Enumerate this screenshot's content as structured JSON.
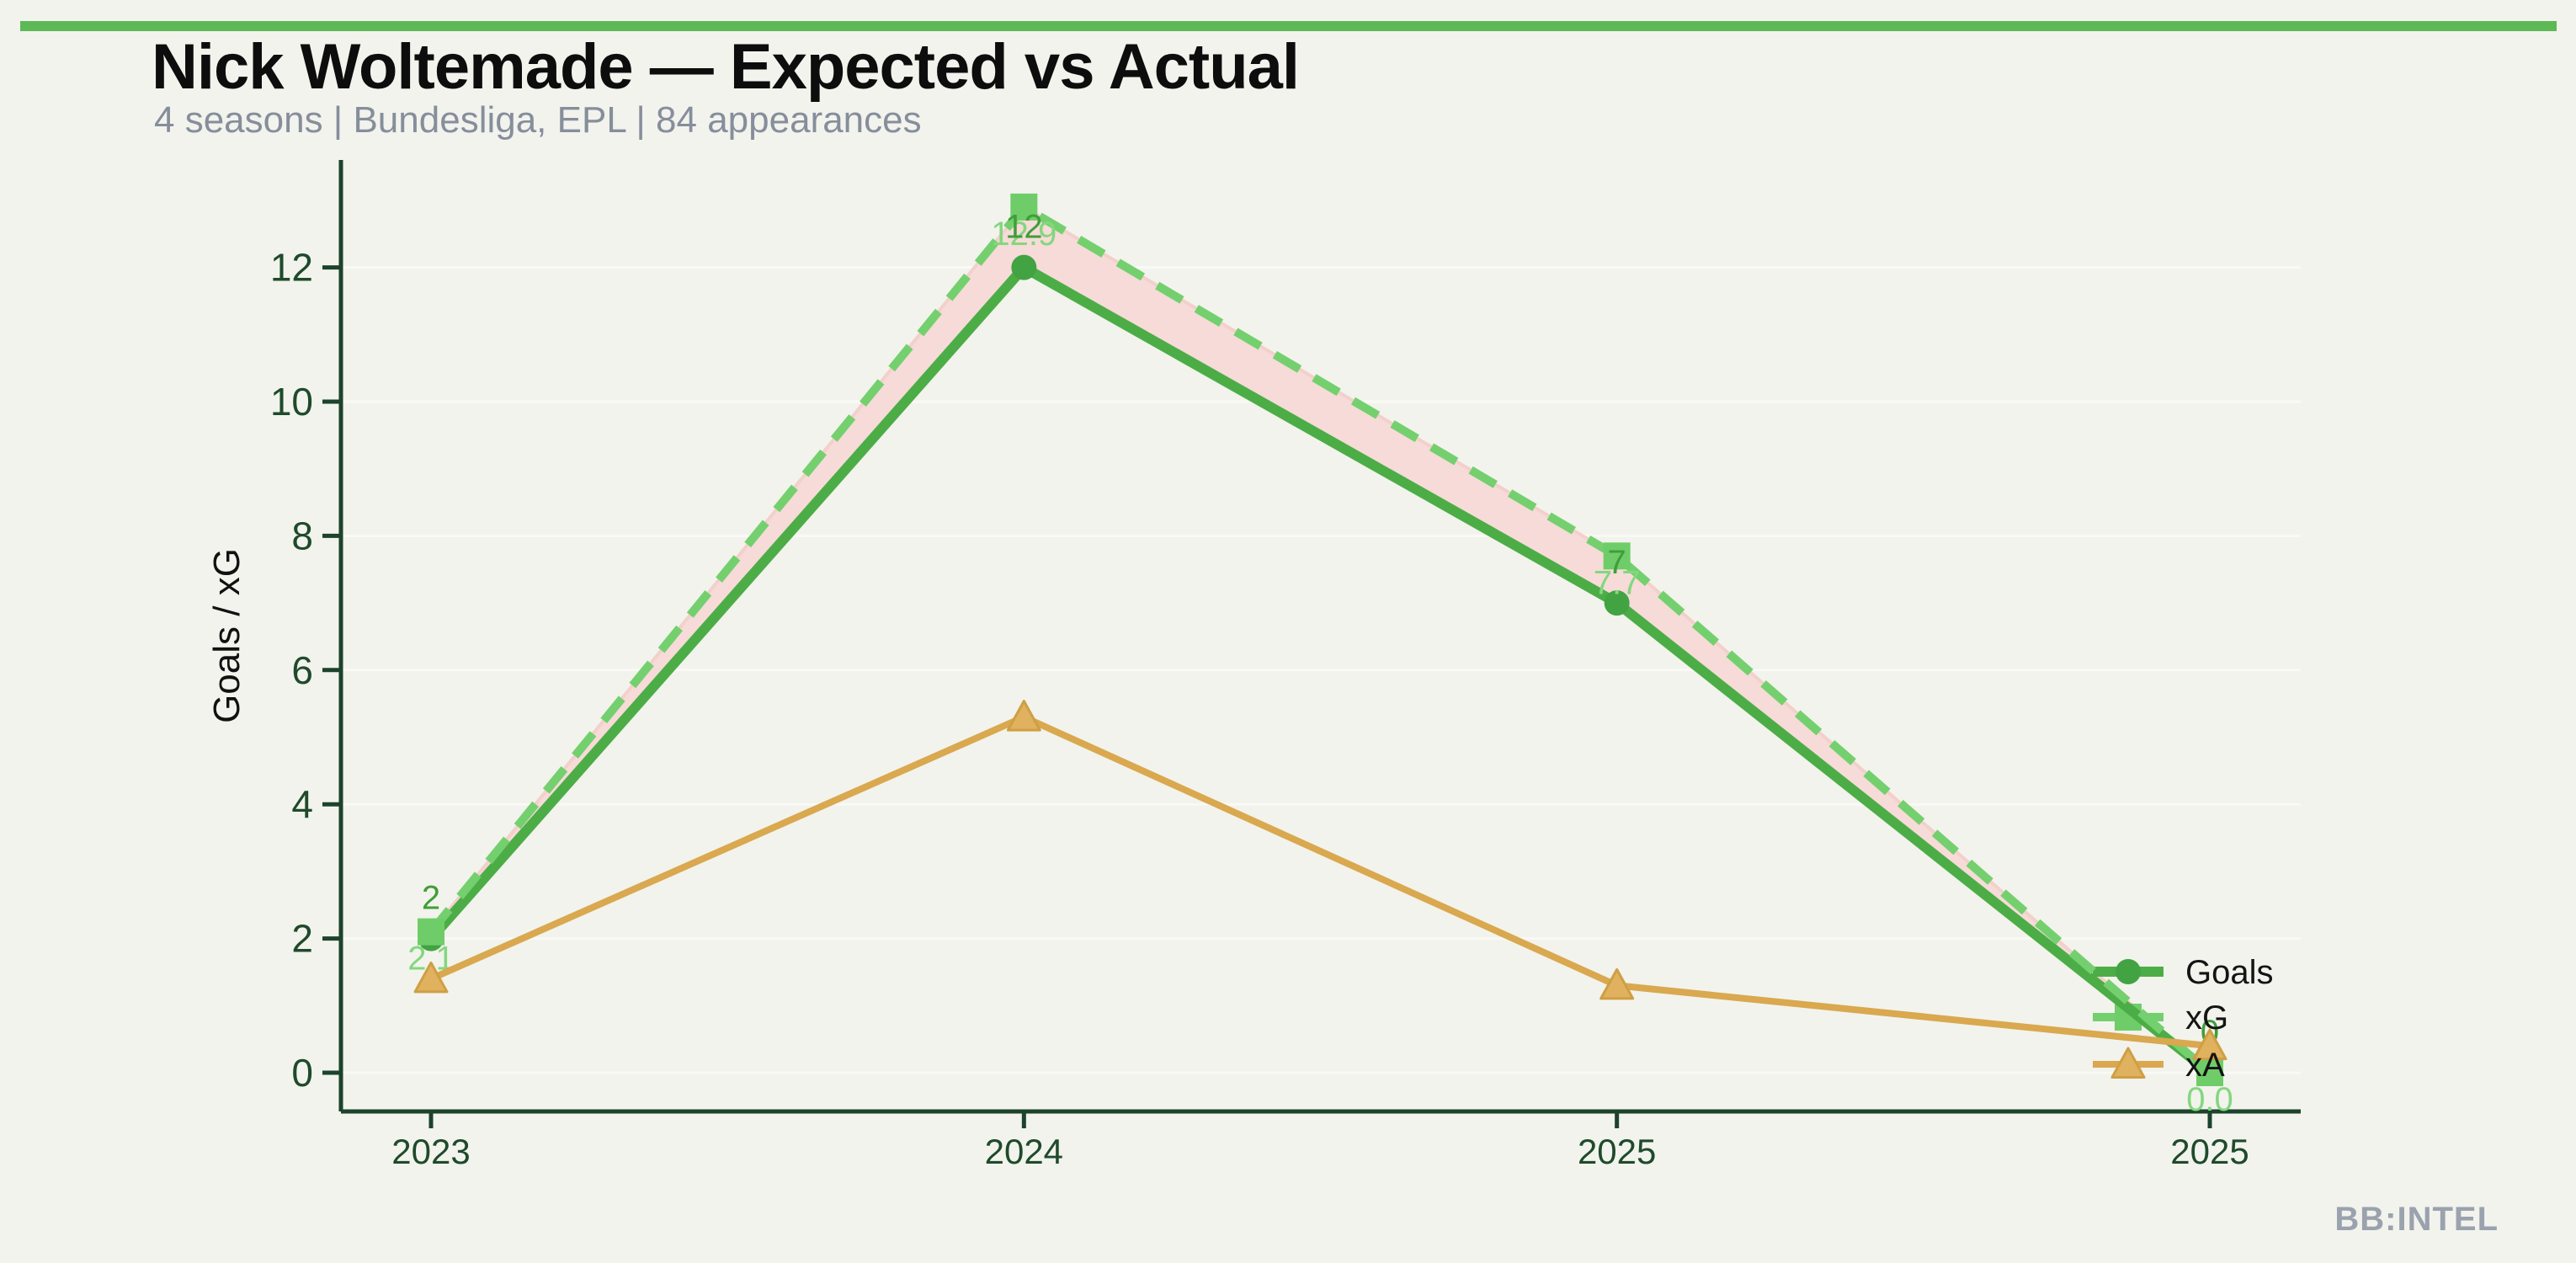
{
  "header": {
    "title": "Nick Woltemade — Expected vs Actual",
    "subtitle": "4 seasons | Bundesliga, EPL | 84 appearances"
  },
  "branding": {
    "watermark": "BB:INTEL"
  },
  "colors": {
    "accent_bar": "#5cb956",
    "background": "#f2f3ec",
    "goals_line": "#4cad47",
    "goals_marker": "#42a342",
    "goals_label": "#3f9e3a",
    "xg_line": "#74d06e",
    "xg_marker": "#6fcd69",
    "xg_label": "#83d77f",
    "xa_line": "#d9a84f",
    "xa_marker_fill": "#e0b15e",
    "xa_marker_edge": "#cf9f44",
    "fill_band": "#f6dbd8",
    "fill_band_edge": "#f3d0cb",
    "axis": "#1c432c",
    "tick_text": "#1f4a2c",
    "grid": "rgba(255,255,255,0.55)",
    "axis_title_text": "#111111",
    "legend_text": "#141414"
  },
  "chart_data": {
    "type": "line",
    "title": "Nick Woltemade — Expected vs Actual",
    "subtitle": "4 seasons | Bundesliga, EPL | 84 appearances",
    "x": [
      "2023",
      "2024",
      "2025",
      "2025"
    ],
    "xlabel": "",
    "ylabel": "Goals / xG",
    "yticks": [
      0,
      2,
      4,
      6,
      8,
      10,
      12
    ],
    "ylim": [
      -0.6,
      13.6
    ],
    "grid": "horizontal-faint",
    "legend_position": "right-inside",
    "legend_entries": [
      "Goals",
      "xG",
      "xA"
    ],
    "series": [
      {
        "name": "Goals",
        "values": [
          2,
          12,
          7,
          0
        ],
        "point_labels": [
          "2",
          "12",
          "7",
          "0"
        ],
        "marker": "circle",
        "line_style": "solid"
      },
      {
        "name": "xG",
        "values": [
          2.1,
          12.9,
          7.7,
          0.0
        ],
        "point_labels": [
          "2.1",
          "12.9",
          "7.7",
          "0.0"
        ],
        "marker": "square",
        "line_style": "dashed"
      },
      {
        "name": "xA",
        "values": [
          1.4,
          5.3,
          1.3,
          0.4
        ],
        "point_labels": null,
        "marker": "triangle",
        "line_style": "solid"
      }
    ],
    "fill_between": {
      "upper": "xG",
      "lower": "Goals",
      "meaning": "overperformance gap between xG and actual goals"
    }
  }
}
